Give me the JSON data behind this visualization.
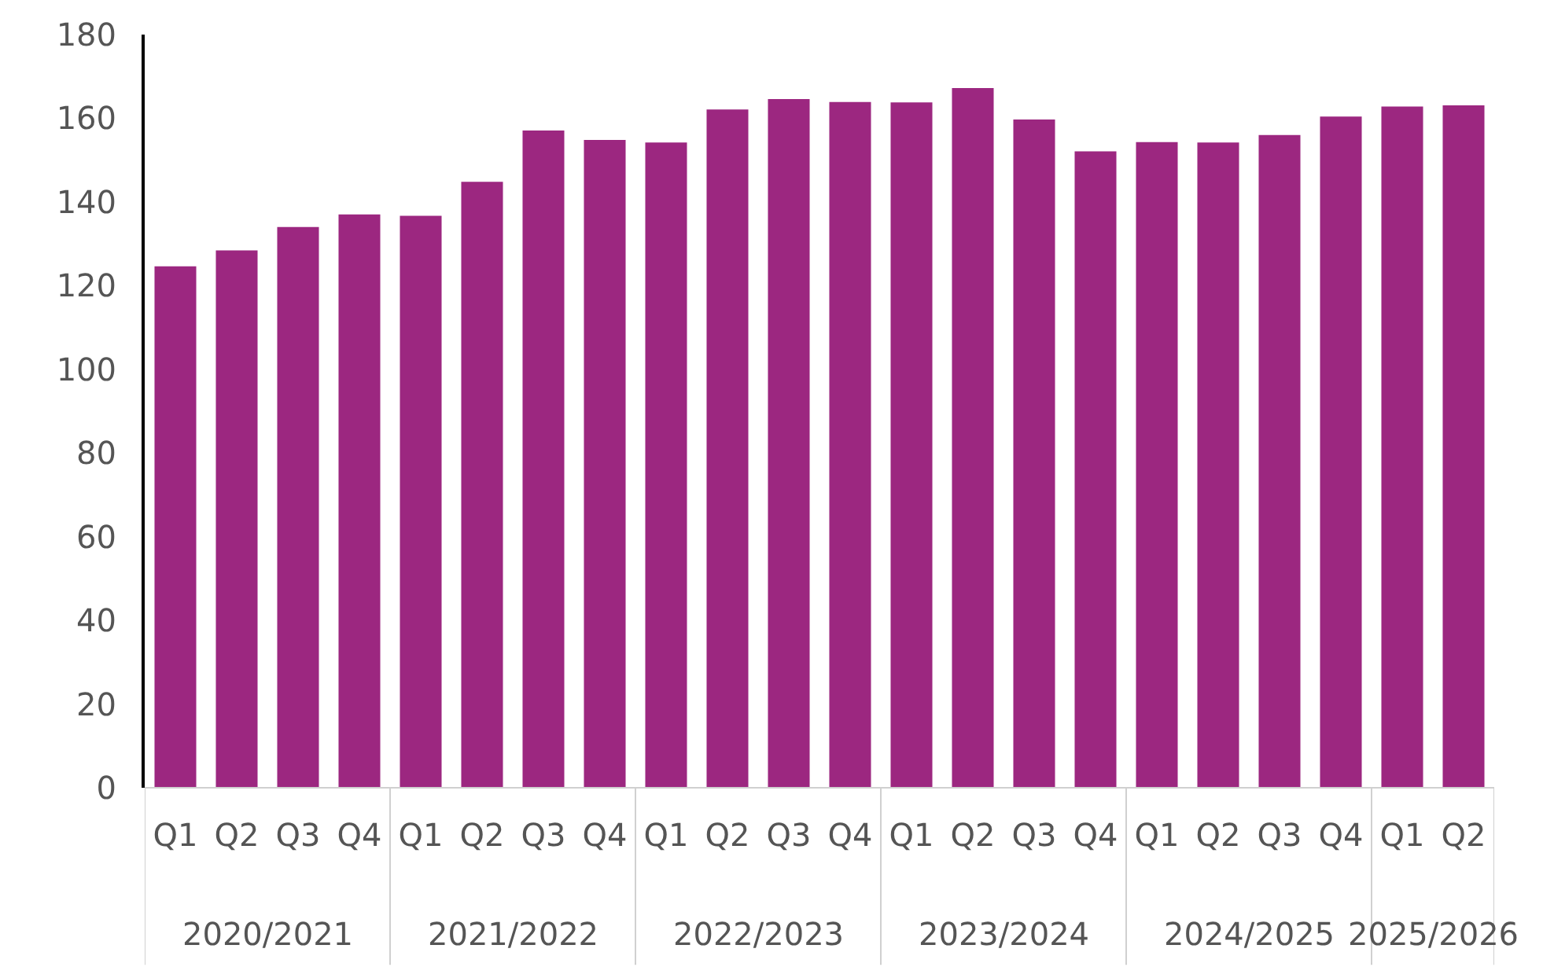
{
  "chart_data": {
    "type": "bar",
    "categories": [
      "Q1",
      "Q2",
      "Q3",
      "Q4",
      "Q1",
      "Q2",
      "Q3",
      "Q4",
      "Q1",
      "Q2",
      "Q3",
      "Q4",
      "Q1",
      "Q2",
      "Q3",
      "Q4",
      "Q1",
      "Q2",
      "Q3",
      "Q4",
      "Q1",
      "Q2"
    ],
    "values": [
      124.6,
      128.4,
      134,
      137,
      136.7,
      144.8,
      157.1,
      154.8,
      154.2,
      162.1,
      164.6,
      163.9,
      163.8,
      167.2,
      159.7,
      152.1,
      154.3,
      154.2,
      156,
      160.4,
      162.8,
      163.1
    ],
    "color": "#9c2780",
    "ylim": [
      0,
      180
    ],
    "yticks": [
      0,
      20,
      40,
      60,
      80,
      100,
      120,
      140,
      160,
      180
    ],
    "grid": false,
    "annotations": [
      "2020/2021",
      "2021/2022",
      "2022/2023",
      "2023/2024",
      "2024/2025",
      "2025/2026"
    ]
  }
}
